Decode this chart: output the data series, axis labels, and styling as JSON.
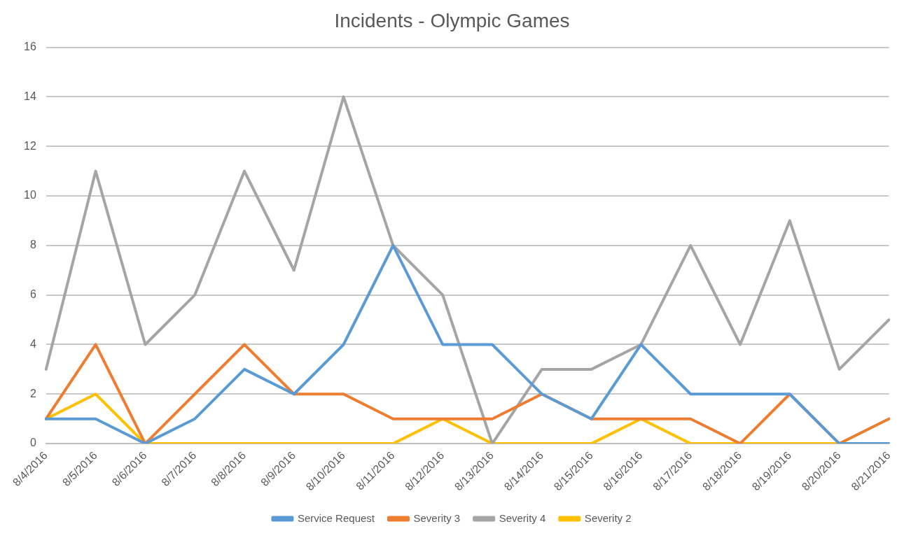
{
  "chart_data": {
    "type": "line",
    "title": "Incidents - Olympic Games",
    "categories": [
      "8/4/2016",
      "8/5/2016",
      "8/6/2016",
      "8/7/2016",
      "8/8/2016",
      "8/9/2016",
      "8/10/2016",
      "8/11/2016",
      "8/12/2016",
      "8/13/2016",
      "8/14/2016",
      "8/15/2016",
      "8/16/2016",
      "8/17/2016",
      "8/18/2016",
      "8/19/2016",
      "8/20/2016",
      "8/21/2016"
    ],
    "series": [
      {
        "name": "Service Request",
        "color": "#5b9bd5",
        "values": [
          1,
          1,
          0,
          1,
          3,
          2,
          4,
          8,
          4,
          4,
          2,
          1,
          4,
          2,
          2,
          2,
          0,
          0
        ]
      },
      {
        "name": "Severity 3",
        "color": "#ed7d31",
        "values": [
          1,
          4,
          0,
          2,
          4,
          2,
          2,
          1,
          1,
          1,
          2,
          1,
          1,
          1,
          0,
          2,
          0,
          1
        ]
      },
      {
        "name": "Severity 4",
        "color": "#a5a5a5",
        "values": [
          3,
          11,
          4,
          6,
          11,
          7,
          14,
          8,
          6,
          0,
          3,
          3,
          4,
          8,
          4,
          9,
          3,
          5
        ]
      },
      {
        "name": "Severity 2",
        "color": "#ffc000",
        "values": [
          1,
          2,
          0,
          0,
          0,
          0,
          0,
          0,
          1,
          0,
          0,
          0,
          1,
          0,
          0,
          0,
          0,
          0
        ]
      }
    ],
    "ylim": [
      0,
      16
    ],
    "yticks": [
      0,
      2,
      4,
      6,
      8,
      10,
      12,
      14,
      16
    ],
    "grid": "y",
    "legend": "bottom",
    "marker": "none",
    "line_style": "solid"
  }
}
